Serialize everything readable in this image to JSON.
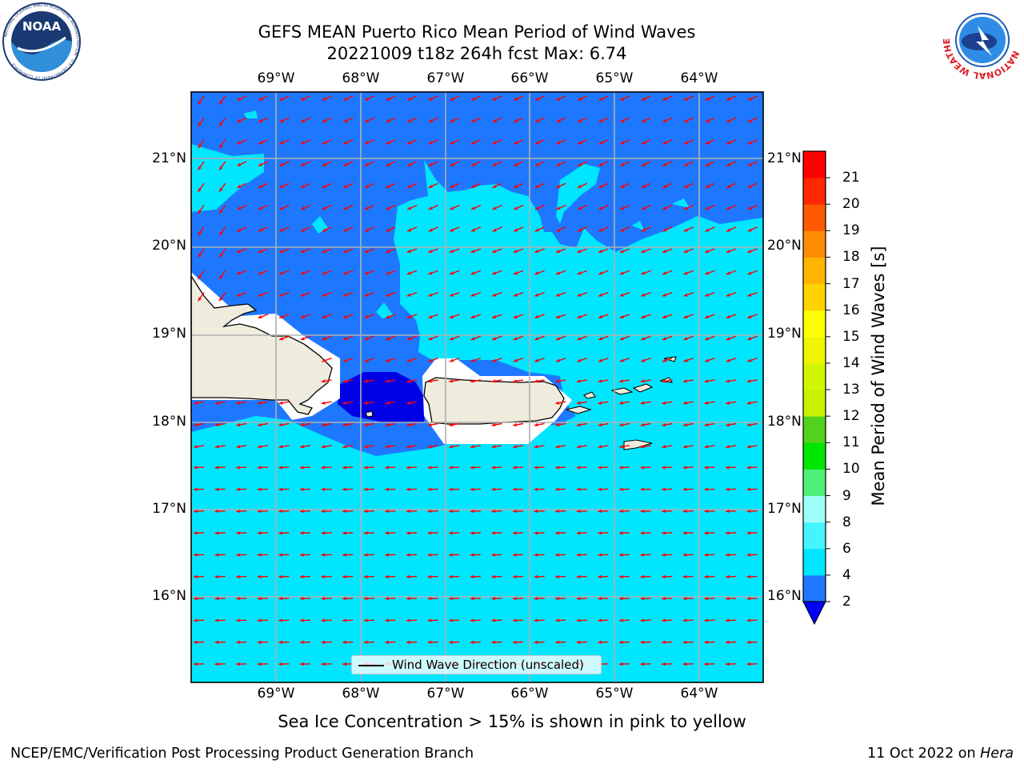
{
  "title": {
    "line1": "GEFS MEAN Puerto Rico Mean Period of Wind Waves",
    "line2": "20221009 t18z 264h fcst   Max: 6.74"
  },
  "map": {
    "longitude_labels": [
      "69°W",
      "68°W",
      "67°W",
      "66°W",
      "65°W",
      "64°W"
    ],
    "latitude_labels": [
      "21°N",
      "20°N",
      "19°N",
      "18°N",
      "17°N",
      "16°N"
    ],
    "legend_label": "Wind Wave Direction (unscaled)",
    "arrow_color": "#ff0000",
    "land_color": "#eeecdc",
    "grid": true,
    "predominant_direction": "east-north-east (arrows point west-south-west)"
  },
  "colorbar": {
    "label": "Mean Period of Wind Waves [s]",
    "ticks": [
      "2",
      "4",
      "6",
      "8",
      "9",
      "10",
      "11",
      "12",
      "13",
      "14",
      "15",
      "16",
      "17",
      "18",
      "19",
      "20",
      "21"
    ],
    "levels": [
      {
        "from": 2,
        "to": 4,
        "color": "#1e78ff"
      },
      {
        "from": 4,
        "to": 6,
        "color": "#00e6ff"
      },
      {
        "from": 6,
        "to": 8,
        "color": "#44f4ff"
      },
      {
        "from": 8,
        "to": 9,
        "color": "#a0fff8"
      },
      {
        "from": 9,
        "to": 10,
        "color": "#50f078"
      },
      {
        "from": 10,
        "to": 11,
        "color": "#00e600"
      },
      {
        "from": 11,
        "to": 12,
        "color": "#50d21e"
      },
      {
        "from": 12,
        "to": 13,
        "color": "#c8f000"
      },
      {
        "from": 13,
        "to": 14,
        "color": "#d2f500"
      },
      {
        "from": 14,
        "to": 15,
        "color": "#f0f500"
      },
      {
        "from": 15,
        "to": 16,
        "color": "#ffff00"
      },
      {
        "from": 16,
        "to": 17,
        "color": "#ffd200"
      },
      {
        "from": 17,
        "to": 18,
        "color": "#ffb400"
      },
      {
        "from": 18,
        "to": 19,
        "color": "#ff8c00"
      },
      {
        "from": 19,
        "to": 20,
        "color": "#ff5a00"
      },
      {
        "from": 20,
        "to": 21,
        "color": "#ff2800"
      },
      {
        "from": 21,
        "to": 22,
        "color": "#ff0000"
      }
    ],
    "underflow_color": "#0000ff"
  },
  "footer": {
    "note": "Sea Ice Concentration > 15% is shown in pink to yellow",
    "left": "NCEP/EMC/Verification Post Processing Product Generation Branch",
    "right_date": "11 Oct 2022 on ",
    "right_machine": "Hera"
  },
  "logos": {
    "noaa": "NOAA",
    "noaa_ring": "NATIONAL OCEANIC AND ATMOSPHERIC ADMINISTRATION · U.S. DEPARTMENT OF COMMERCE",
    "nws": "NATIONAL WEATHER SERVICE"
  }
}
